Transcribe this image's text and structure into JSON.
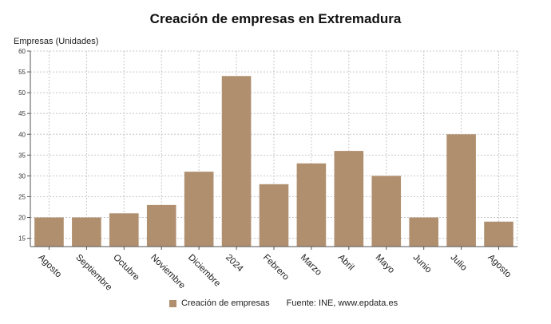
{
  "chart_data": {
    "type": "bar",
    "title": "Creación de empresas en Extremadura",
    "ylabel": "Empresas (Unidades)",
    "xlabel": "",
    "categories": [
      "Agosto",
      "Septiembre",
      "Octubre",
      "Noviembre",
      "Diciembre",
      "2024",
      "Febrero",
      "Marzo",
      "Abril",
      "Mayo",
      "Junio",
      "Julio",
      "Agosto"
    ],
    "series": [
      {
        "name": "Creación de empresas",
        "values": [
          20,
          20,
          21,
          23,
          31,
          54,
          28,
          33,
          36,
          30,
          20,
          40,
          19
        ]
      }
    ],
    "ylim": [
      13,
      60
    ],
    "yticks": [
      15,
      20,
      25,
      30,
      35,
      40,
      45,
      50,
      55,
      60
    ],
    "grid": true,
    "legend_position": "bottom",
    "colors": {
      "bar": "#b08f6f",
      "grid": "#c8c8c8",
      "axis": "#555555"
    }
  },
  "source": "Fuente: INE, www.epdata.es"
}
